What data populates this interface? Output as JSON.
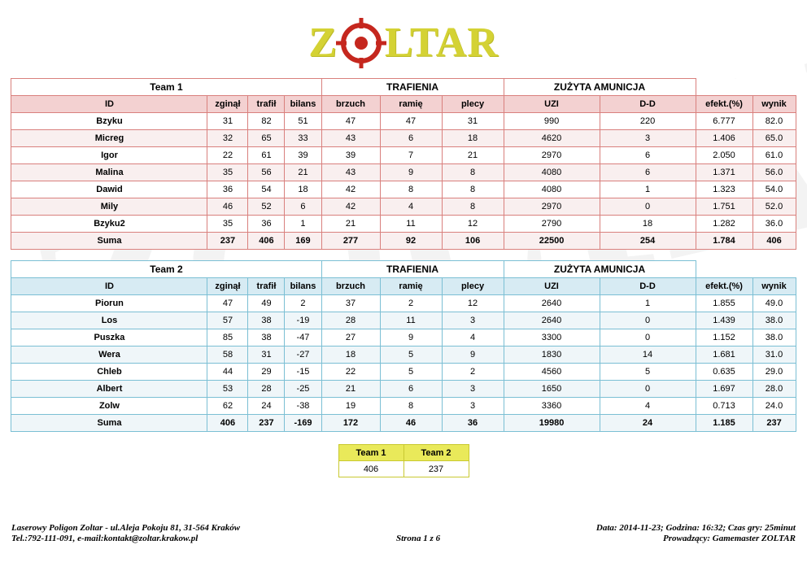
{
  "logo": {
    "left": "Z",
    "right": "LTAR"
  },
  "watermark": {
    "left": "Z",
    "right": "LTAR"
  },
  "group_headers": {
    "trafienia": "TRAFIENIA",
    "amunicja": "ZUŻYTA AMUNICJA"
  },
  "columns": [
    "ID",
    "zginął",
    "trafił",
    "bilans",
    "brzuch",
    "ramię",
    "plecy",
    "UZI",
    "D-D",
    "efekt.(%)",
    "wynik"
  ],
  "teams": [
    {
      "label": "Team 1",
      "rows": [
        {
          "cells": [
            "Bzyku",
            "31",
            "82",
            "51",
            "47",
            "47",
            "31",
            "990",
            "220",
            "6.777",
            "82.0"
          ]
        },
        {
          "cells": [
            "Micreg",
            "32",
            "65",
            "33",
            "43",
            "6",
            "18",
            "4620",
            "3",
            "1.406",
            "65.0"
          ]
        },
        {
          "cells": [
            "Igor",
            "22",
            "61",
            "39",
            "39",
            "7",
            "21",
            "2970",
            "6",
            "2.050",
            "61.0"
          ]
        },
        {
          "cells": [
            "Malina",
            "35",
            "56",
            "21",
            "43",
            "9",
            "8",
            "4080",
            "6",
            "1.371",
            "56.0"
          ]
        },
        {
          "cells": [
            "Dawid",
            "36",
            "54",
            "18",
            "42",
            "8",
            "8",
            "4080",
            "1",
            "1.323",
            "54.0"
          ]
        },
        {
          "cells": [
            "Mily",
            "46",
            "52",
            "6",
            "42",
            "4",
            "8",
            "2970",
            "0",
            "1.751",
            "52.0"
          ]
        },
        {
          "cells": [
            "Bzyku2",
            "35",
            "36",
            "1",
            "21",
            "11",
            "12",
            "2790",
            "18",
            "1.282",
            "36.0"
          ]
        },
        {
          "cells": [
            "Suma",
            "237",
            "406",
            "169",
            "277",
            "92",
            "106",
            "22500",
            "254",
            "1.784",
            "406"
          ],
          "is_total": true
        }
      ]
    },
    {
      "label": "Team 2",
      "rows": [
        {
          "cells": [
            "Piorun",
            "47",
            "49",
            "2",
            "37",
            "2",
            "12",
            "2640",
            "1",
            "1.855",
            "49.0"
          ]
        },
        {
          "cells": [
            "Los",
            "57",
            "38",
            "-19",
            "28",
            "11",
            "3",
            "2640",
            "0",
            "1.439",
            "38.0"
          ]
        },
        {
          "cells": [
            "Puszka",
            "85",
            "38",
            "-47",
            "27",
            "9",
            "4",
            "3300",
            "0",
            "1.152",
            "38.0"
          ]
        },
        {
          "cells": [
            "Wera",
            "58",
            "31",
            "-27",
            "18",
            "5",
            "9",
            "1830",
            "14",
            "1.681",
            "31.0"
          ]
        },
        {
          "cells": [
            "Chleb",
            "44",
            "29",
            "-15",
            "22",
            "5",
            "2",
            "4560",
            "5",
            "0.635",
            "29.0"
          ]
        },
        {
          "cells": [
            "Albert",
            "53",
            "28",
            "-25",
            "21",
            "6",
            "3",
            "1650",
            "0",
            "1.697",
            "28.0"
          ]
        },
        {
          "cells": [
            "Zolw",
            "62",
            "24",
            "-38",
            "19",
            "8",
            "3",
            "3360",
            "4",
            "0.713",
            "24.0"
          ]
        },
        {
          "cells": [
            "Suma",
            "406",
            "237",
            "-169",
            "172",
            "46",
            "36",
            "19980",
            "24",
            "1.185",
            "237"
          ],
          "is_total": true
        }
      ]
    }
  ],
  "summary": {
    "headers": [
      "Team 1",
      "Team 2"
    ],
    "values": [
      "406",
      "237"
    ]
  },
  "footer": {
    "address_line1": "Laserowy Poligon Zoltar - ul.Aleja Pokoju 81, 31-564 Kraków",
    "address_line2": "Tel.:792-111-091, e-mail:kontakt@zoltar.krakow.pl",
    "page": "Strona 1 z 6",
    "info_line1": "Data: 2014-11-23; Godzina: 16:32; Czas gry: 25minut",
    "info_line2": "Prowadzący: Gamemaster ZOLTAR"
  },
  "colors": {
    "team1_border": "#d9807d",
    "team1_header_bg": "#f3d1d1",
    "team1_stripe": "#f9efef",
    "team2_border": "#7bbfd4",
    "team2_header_bg": "#d7ebf3",
    "team2_stripe": "#eff6f9",
    "summary_border": "#c9c932",
    "summary_header_bg": "#e9e95a",
    "logo_text": "#d4d234",
    "logo_target": "#c5271e"
  }
}
